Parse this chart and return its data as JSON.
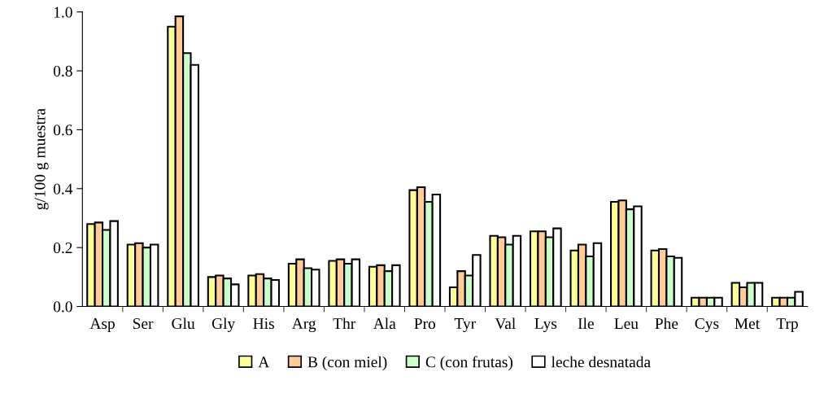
{
  "chart_data": {
    "type": "bar",
    "ylabel": "g/100 g muestra",
    "categories": [
      "Asp",
      "Ser",
      "Glu",
      "Gly",
      "His",
      "Arg",
      "Thr",
      "Ala",
      "Pro",
      "Tyr",
      "Val",
      "Lys",
      "Ile",
      "Leu",
      "Phe",
      "Cys",
      "Met",
      "Trp"
    ],
    "series": [
      {
        "name": "A",
        "color": "#ffff99",
        "values": [
          0.28,
          0.21,
          0.95,
          0.1,
          0.105,
          0.145,
          0.155,
          0.135,
          0.395,
          0.065,
          0.24,
          0.255,
          0.19,
          0.355,
          0.19,
          0.03,
          0.08,
          0.03
        ]
      },
      {
        "name": "B (con miel)",
        "color": "#ffcc99",
        "values": [
          0.285,
          0.215,
          0.985,
          0.105,
          0.11,
          0.16,
          0.16,
          0.14,
          0.405,
          0.12,
          0.235,
          0.255,
          0.21,
          0.36,
          0.195,
          0.03,
          0.065,
          0.03
        ]
      },
      {
        "name": "C (con frutas)",
        "color": "#ccffcc",
        "values": [
          0.26,
          0.2,
          0.86,
          0.095,
          0.095,
          0.13,
          0.145,
          0.12,
          0.355,
          0.105,
          0.21,
          0.235,
          0.17,
          0.33,
          0.17,
          0.03,
          0.08,
          0.03
        ]
      },
      {
        "name": "leche desnatada",
        "color": "#ffffff",
        "values": [
          0.29,
          0.21,
          0.82,
          0.075,
          0.09,
          0.125,
          0.16,
          0.14,
          0.38,
          0.175,
          0.24,
          0.265,
          0.215,
          0.34,
          0.165,
          0.03,
          0.08,
          0.05
        ]
      }
    ],
    "ylim": [
      0,
      1.0
    ],
    "yticks": [
      {
        "value": 0,
        "label": "0.0"
      },
      {
        "value": 0.2,
        "label": "0.2"
      },
      {
        "value": 0.4,
        "label": "0.4"
      },
      {
        "value": 0.6,
        "label": "0.6"
      },
      {
        "value": 0.8,
        "label": "0.8"
      },
      {
        "value": 1.0,
        "label": "1.0"
      }
    ],
    "grid": false,
    "legend": "bottom"
  }
}
